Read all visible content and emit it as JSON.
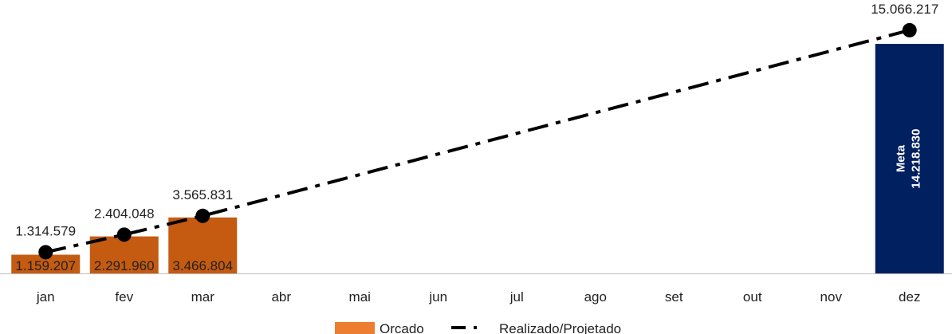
{
  "chart_data": {
    "type": "bar",
    "categories": [
      "jan",
      "fev",
      "mar",
      "abr",
      "mai",
      "jun",
      "jul",
      "ago",
      "set",
      "out",
      "nov",
      "dez"
    ],
    "ylim": [
      0,
      16000000
    ],
    "grid": false,
    "legend_position": "bottom",
    "series": [
      {
        "name": "Orcado",
        "kind": "bar",
        "color": "#c55a11",
        "legend_color": "#ed7d31",
        "values": [
          1159207,
          2291960,
          3466804,
          null,
          null,
          null,
          null,
          null,
          null,
          null,
          null,
          null
        ],
        "labels": [
          "1.159.207",
          "2.291.960",
          "3.466.804",
          null,
          null,
          null,
          null,
          null,
          null,
          null,
          null,
          null
        ]
      },
      {
        "name": "Realizado/Projetado",
        "kind": "line",
        "style": "dash-dot",
        "color": "#000000",
        "x": [
          "jan",
          "fev",
          "mar",
          "dez"
        ],
        "values": [
          1314579,
          2404048,
          3565831,
          15066217
        ],
        "labels": [
          "1.314.579",
          "2.404.048",
          "3.565.831",
          "15.066.217"
        ]
      }
    ],
    "goal": {
      "category": "dez",
      "value": 14218830,
      "label": "Meta",
      "value_label": "14.218.830",
      "color": "#002060"
    }
  }
}
